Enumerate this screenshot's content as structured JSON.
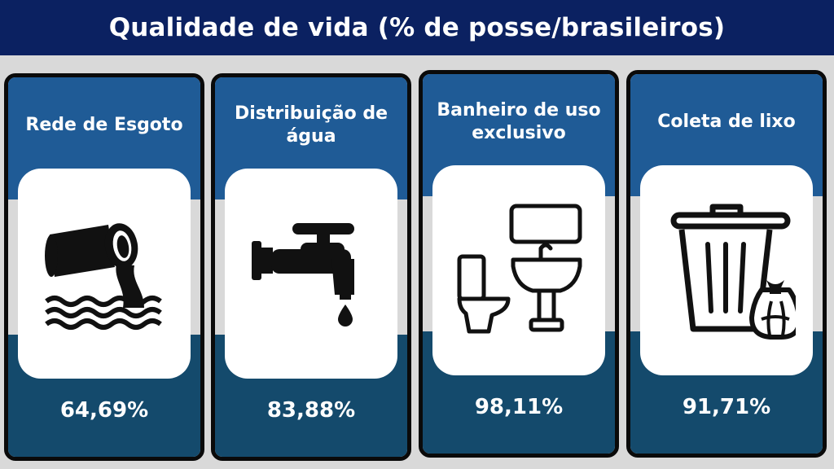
{
  "header": {
    "title": "Qualidade de vida (% de posse/brasileiros)"
  },
  "cards": [
    {
      "title": "Rede de Esgoto",
      "value": "64,69%",
      "icon": "sewage-pipe-icon"
    },
    {
      "title": "Distribuição de água",
      "value": "83,88%",
      "icon": "water-faucet-icon"
    },
    {
      "title": "Banheiro de uso exclusivo",
      "value": "98,11%",
      "icon": "bathroom-icon"
    },
    {
      "title": "Coleta de lixo",
      "value": "91,71%",
      "icon": "trash-can-icon"
    }
  ],
  "colors": {
    "header_bg": "#0b2161",
    "card_top": "#1f5b96",
    "card_bottom": "#144a6c",
    "page_bg": "#d9d9d9"
  }
}
